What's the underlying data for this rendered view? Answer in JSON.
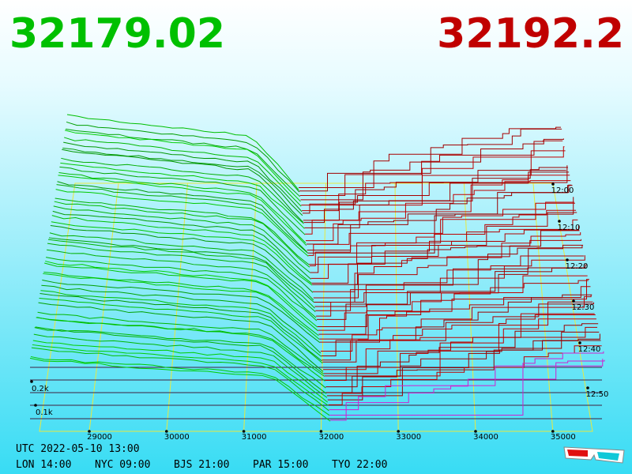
{
  "header": {
    "bid": "32179.02",
    "ask": "32192.2"
  },
  "price_axis": [
    "29000",
    "30000",
    "31000",
    "32000",
    "33000",
    "34000",
    "35000"
  ],
  "time_axis": [
    "12:00",
    "12:10",
    "12:20",
    "12:30",
    "12:40",
    "12:50"
  ],
  "volume_axis": [
    "0.2k",
    "0.1k"
  ],
  "footer": {
    "utc": "UTC 2022-05-10 13:00",
    "cities": [
      "LON 14:00",
      "NYC 09:00",
      "BJS 21:00",
      "PAR 15:00",
      "TYO 22:00"
    ]
  }
}
